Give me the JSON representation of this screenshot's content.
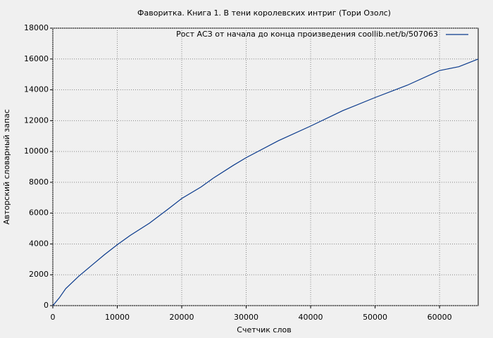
{
  "chart_data": {
    "type": "line",
    "title": "Фаворитка. Книга 1. В тени королевских интриг (Тори Озолс)",
    "x_label": "Счетчик слов",
    "y_label": "Авторский словарный запас",
    "x": [
      0,
      1000,
      2000,
      4000,
      6000,
      8000,
      10000,
      12000,
      15000,
      18000,
      20000,
      23000,
      25000,
      28000,
      30000,
      35000,
      40000,
      45000,
      50000,
      55000,
      60000,
      63000,
      66000
    ],
    "series": [
      {
        "name": "Рост АСЗ от начала до конца произведения coollib.net/b/507063",
        "color": "#0a3a8c",
        "values": [
          0,
          500,
          1100,
          1900,
          2600,
          3300,
          3950,
          4550,
          5350,
          6300,
          6950,
          7700,
          8300,
          9100,
          9600,
          10700,
          11650,
          12650,
          13500,
          14300,
          15250,
          15500,
          16000
        ]
      }
    ],
    "xlim": [
      0,
      66000
    ],
    "ylim": [
      0,
      18000
    ],
    "xticks": [
      0,
      10000,
      20000,
      30000,
      40000,
      50000,
      60000
    ],
    "yticks": [
      0,
      2000,
      4000,
      6000,
      8000,
      10000,
      12000,
      14000,
      16000,
      18000
    ],
    "grid": true,
    "legend": "top-right"
  }
}
